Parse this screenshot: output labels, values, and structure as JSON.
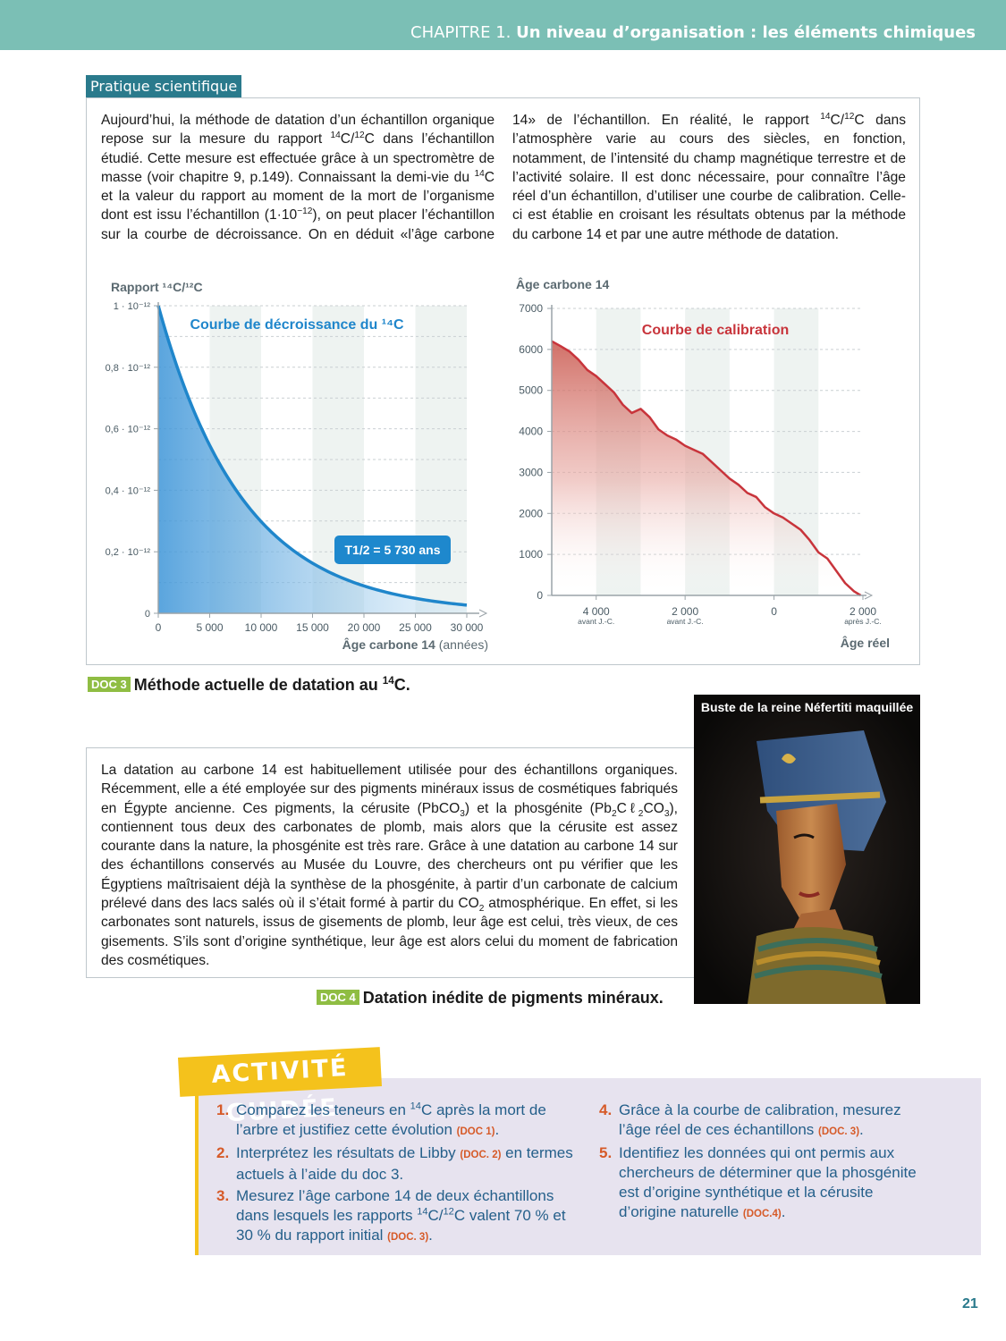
{
  "header": {
    "chapter": "CHAPITRE 1.",
    "title": "Un niveau d’organisation : les éléments chimiques"
  },
  "section_tag": "Pratique scientifique",
  "intro_html": "Aujourd’hui, la méthode de datation d’un échantillon organique repose sur la mesure du rapport <sup>14</sup>C/<sup>12</sup>C dans l’échantillon étudié. Cette mesure est effectuée grâce à un spectromètre de masse (voir chapitre 9, p.149). Connaissant la demi-vie du <sup>14</sup>C et la valeur du rapport au moment de la mort de l’organisme dont est issu l’échantillon (1·10<sup>−12</sup>), on peut placer l’échantillon sur la courbe de décroissance. On en déduit «l’âge carbone 14» de l’échantillon. En réalité, le rapport <sup>14</sup>C/<sup>12</sup>C dans l’atmosphère varie au cours des siècles, en fonction, notamment, de l’intensité du champ magnétique terrestre et de l’activité solaire. Il est donc nécessaire, pour connaître l’âge réel d’un échantillon, d’utiliser une courbe de calibration. Celle-ci est établie en croisant les résultats obtenus par la méthode du carbone 14 et par une autre méthode de datation.",
  "chart_data": [
    {
      "type": "line",
      "title": "Courbe de décroissance du ¹⁴C",
      "ylabel": "Rapport ¹⁴C/¹²C",
      "xlabel": "Âge carbone 14",
      "xlabel_suffix": "(années)",
      "x_ticks": [
        "0",
        "5 000",
        "10 000",
        "15 000",
        "20 000",
        "25 000",
        "30 000"
      ],
      "y_ticks": [
        "0",
        "0,2 · 10⁻¹²",
        "0,4 · 10⁻¹²",
        "0,6 · 10⁻¹²",
        "0,8 · 10⁻¹²",
        "1 · 10⁻¹²"
      ],
      "xlim": [
        0,
        30000
      ],
      "ylim": [
        0,
        1
      ],
      "half_life": 5730,
      "annotation": "T1/2 = 5 730 ans",
      "series": [
        {
          "x": [
            0,
            2500,
            5000,
            5730,
            7500,
            10000,
            12500,
            15000,
            17500,
            20000,
            22500,
            25000,
            27500,
            30000
          ],
          "values": [
            1.0,
            0.739,
            0.546,
            0.5,
            0.404,
            0.298,
            0.221,
            0.163,
            0.12,
            0.089,
            0.066,
            0.048,
            0.036,
            0.026
          ]
        }
      ]
    },
    {
      "type": "area",
      "title": "Courbe de calibration",
      "ylabel": "Âge carbone 14",
      "xlabel": "Âge réel",
      "x_ticks": [
        {
          "label": "4 000",
          "sub": "avant J.-C."
        },
        {
          "label": "2 000",
          "sub": "avant J.-C."
        },
        {
          "label": "0",
          "sub": ""
        },
        {
          "label": "2 000",
          "sub": "après J.-C."
        }
      ],
      "y_ticks": [
        "0",
        "1000",
        "2000",
        "3000",
        "4000",
        "5000",
        "6000",
        "7000"
      ],
      "xlim": [
        -5000,
        2000
      ],
      "ylim": [
        0,
        7000
      ],
      "series": [
        {
          "x": [
            -5000,
            -4800,
            -4600,
            -4400,
            -4200,
            -4000,
            -3800,
            -3600,
            -3400,
            -3200,
            -3000,
            -2800,
            -2600,
            -2400,
            -2200,
            -2000,
            -1800,
            -1600,
            -1400,
            -1200,
            -1000,
            -800,
            -600,
            -400,
            -200,
            0,
            200,
            400,
            600,
            800,
            1000,
            1200,
            1400,
            1600,
            1800,
            1950
          ],
          "values": [
            6200,
            6080,
            5950,
            5750,
            5500,
            5350,
            5150,
            4950,
            4650,
            4450,
            4550,
            4350,
            4050,
            3900,
            3800,
            3650,
            3550,
            3450,
            3250,
            3050,
            2850,
            2700,
            2500,
            2400,
            2150,
            2000,
            1900,
            1750,
            1600,
            1350,
            1050,
            900,
            600,
            300,
            100,
            0
          ]
        }
      ]
    }
  ],
  "doc3": {
    "badge": "DOC 3",
    "caption_html": "Méthode actuelle de datation au <sup>14</sup>C."
  },
  "doc4": {
    "badge": "DOC 4",
    "caption": "Datation inédite de pigments minéraux.",
    "text_html": "La datation au carbone 14 est habituellement utilisée pour des échantillons organiques. Récemment, elle a été employée sur des pigments minéraux issus de cosmétiques fabriqués en Égypte ancienne. Ces pigments, la cérusite (PbCO<sub>3</sub>) et la phosgénite (Pb<sub>2</sub>Cℓ<sub>2</sub>CO<sub>3</sub>), contiennent tous deux des carbonates de plomb, mais alors que la cérusite est assez courante dans la nature, la phosgénite est très rare. Grâce à une datation au carbone 14 sur des échantillons conservés au Musée du Louvre, des chercheurs ont pu vérifier que les Égyptiens maîtrisaient déjà la synthèse de la phosgénite, à partir d’un carbonate de calcium prélevé dans des lacs salés où il s’était formé à partir du CO<sub>2</sub> atmosphérique. En effet, si les carbonates sont naturels, issus de gisements de plomb, leur âge est celui, très vieux, de ces gisements. S’ils sont d’origine synthétique, leur âge est alors celui du moment de fabrication des cosmétiques.",
    "photo_caption": "Buste de la reine Néfertiti maquillée"
  },
  "activity": {
    "title": "ACTIVITÉ GUIDÉE",
    "questions_left": [
      {
        "num": "1.",
        "html": "Comparez les teneurs en <sup>14</sup>C après la mort de l’arbre et justifiez cette évolution <span class=\"ref\">(DOC 1)</span>."
      },
      {
        "num": "2.",
        "html": "Interprétez les résultats de Libby <span class=\"ref\">(DOC. 2)</span> en termes actuels à l’aide du doc 3."
      },
      {
        "num": "3.",
        "html": "Mesurez l’âge carbone 14 de deux échantillons dans lesquels les rapports <sup>14</sup>C/<sup>12</sup>C valent 70 % et 30 % du rapport initial <span class=\"ref\">(DOC. 3)</span>."
      }
    ],
    "questions_right": [
      {
        "num": "4.",
        "html": "Grâce à la courbe de calibration, mesurez l’âge réel de ces échantillons <span class=\"ref\">(DOC. 3)</span>."
      },
      {
        "num": "5.",
        "html": "Identifiez les données qui ont permis aux chercheurs de déterminer que la phosgénite est d’origine synthétique et la cérusite d’origine naturelle <span class=\"ref\">(DOC.4)</span>."
      }
    ]
  },
  "page_number": "21",
  "colors": {
    "teal": "#7bbfb5",
    "decay_blue": "#1f86cb",
    "calib_red": "#c8343b",
    "badge_green": "#8fbd43",
    "activity_yellow": "#f4c21c"
  }
}
